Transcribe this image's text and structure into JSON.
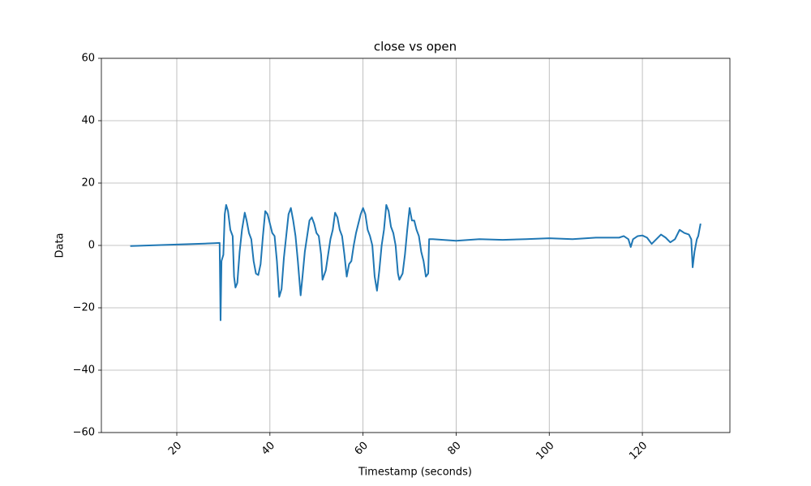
{
  "chart_data": {
    "type": "line",
    "title": "close vs open",
    "xlabel": "Timestamp (seconds)",
    "ylabel": "Data",
    "x": [
      10,
      12,
      14,
      16,
      18,
      20,
      22,
      24,
      26,
      28,
      29.2,
      29.4,
      29.6,
      30,
      30.3,
      30.6,
      31,
      31.5,
      32,
      32.3,
      32.6,
      33,
      33.5,
      34,
      34.6,
      35,
      35.5,
      36,
      36.5,
      37,
      37.5,
      38,
      38.5,
      39,
      39.5,
      40,
      40.5,
      41,
      41.5,
      42,
      42.5,
      43,
      43.5,
      44,
      44.5,
      45,
      45.5,
      46,
      46.6,
      47,
      47.5,
      48,
      48.5,
      49,
      49.5,
      50,
      50.5,
      51,
      51.3,
      52,
      52.5,
      53,
      53.5,
      54,
      54.5,
      55,
      55.5,
      56,
      56.5,
      57,
      57.5,
      58,
      58.5,
      59,
      59.5,
      60,
      60.5,
      61,
      61.5,
      62,
      62.5,
      63,
      63.5,
      64,
      64.5,
      65,
      65.5,
      66,
      66.5,
      67,
      67.5,
      67.8,
      68.5,
      69,
      69.5,
      70,
      70.5,
      71,
      71.5,
      72,
      72.5,
      73,
      73.5,
      74,
      74.2,
      75,
      80,
      85,
      90,
      95,
      100,
      105,
      110,
      115,
      116,
      117,
      117.5,
      118,
      119,
      120,
      121,
      122,
      123,
      124,
      125,
      126,
      127,
      128,
      129,
      130,
      130.5,
      130.8,
      131.2,
      131.7,
      132,
      132.5
    ],
    "values": [
      -0.2,
      -0.1,
      0,
      0.1,
      0.2,
      0.3,
      0.4,
      0.5,
      0.6,
      0.7,
      0.8,
      -24,
      -5,
      -3,
      10,
      13,
      11,
      5,
      3,
      -10,
      -13.5,
      -12,
      -2,
      5,
      10.5,
      8,
      4,
      2,
      -5,
      -9,
      -9.5,
      -6,
      3,
      11,
      10,
      7,
      4,
      3,
      -5,
      -16.5,
      -14,
      -4,
      3,
      10,
      12,
      8,
      3,
      -5,
      -16,
      -10,
      -2,
      3,
      8,
      9,
      7,
      4,
      3,
      -3,
      -11,
      -8,
      -3,
      2,
      5,
      10.5,
      9,
      5,
      3,
      -3,
      -10,
      -6,
      -5,
      0,
      4,
      7,
      10,
      12,
      10,
      5,
      3,
      0,
      -10,
      -14.5,
      -8,
      0,
      5,
      13,
      11,
      6,
      4,
      0,
      -9,
      -11,
      -9,
      -3,
      5,
      12,
      8,
      8,
      5,
      3,
      -2,
      -5,
      -10,
      -9,
      2,
      2,
      1.5,
      2,
      1.8,
      2,
      2.3,
      2,
      2.5,
      2.5,
      3,
      2,
      -0.5,
      2,
      3,
      3.2,
      2.5,
      0.5,
      2,
      3.5,
      2.5,
      1,
      2,
      5,
      4,
      3.5,
      2,
      -7,
      -2,
      2,
      3,
      7
    ],
    "color": "#1f77b4",
    "xlim": [
      3.8,
      138.8
    ],
    "ylim": [
      -60,
      60
    ],
    "xticks": [
      20,
      40,
      60,
      80,
      100,
      120
    ],
    "yticks": [
      {
        "value": -60,
        "label": "−60"
      },
      {
        "value": -40,
        "label": "−40"
      },
      {
        "value": -20,
        "label": "−20"
      },
      0,
      20,
      40,
      60
    ],
    "grid": true
  }
}
